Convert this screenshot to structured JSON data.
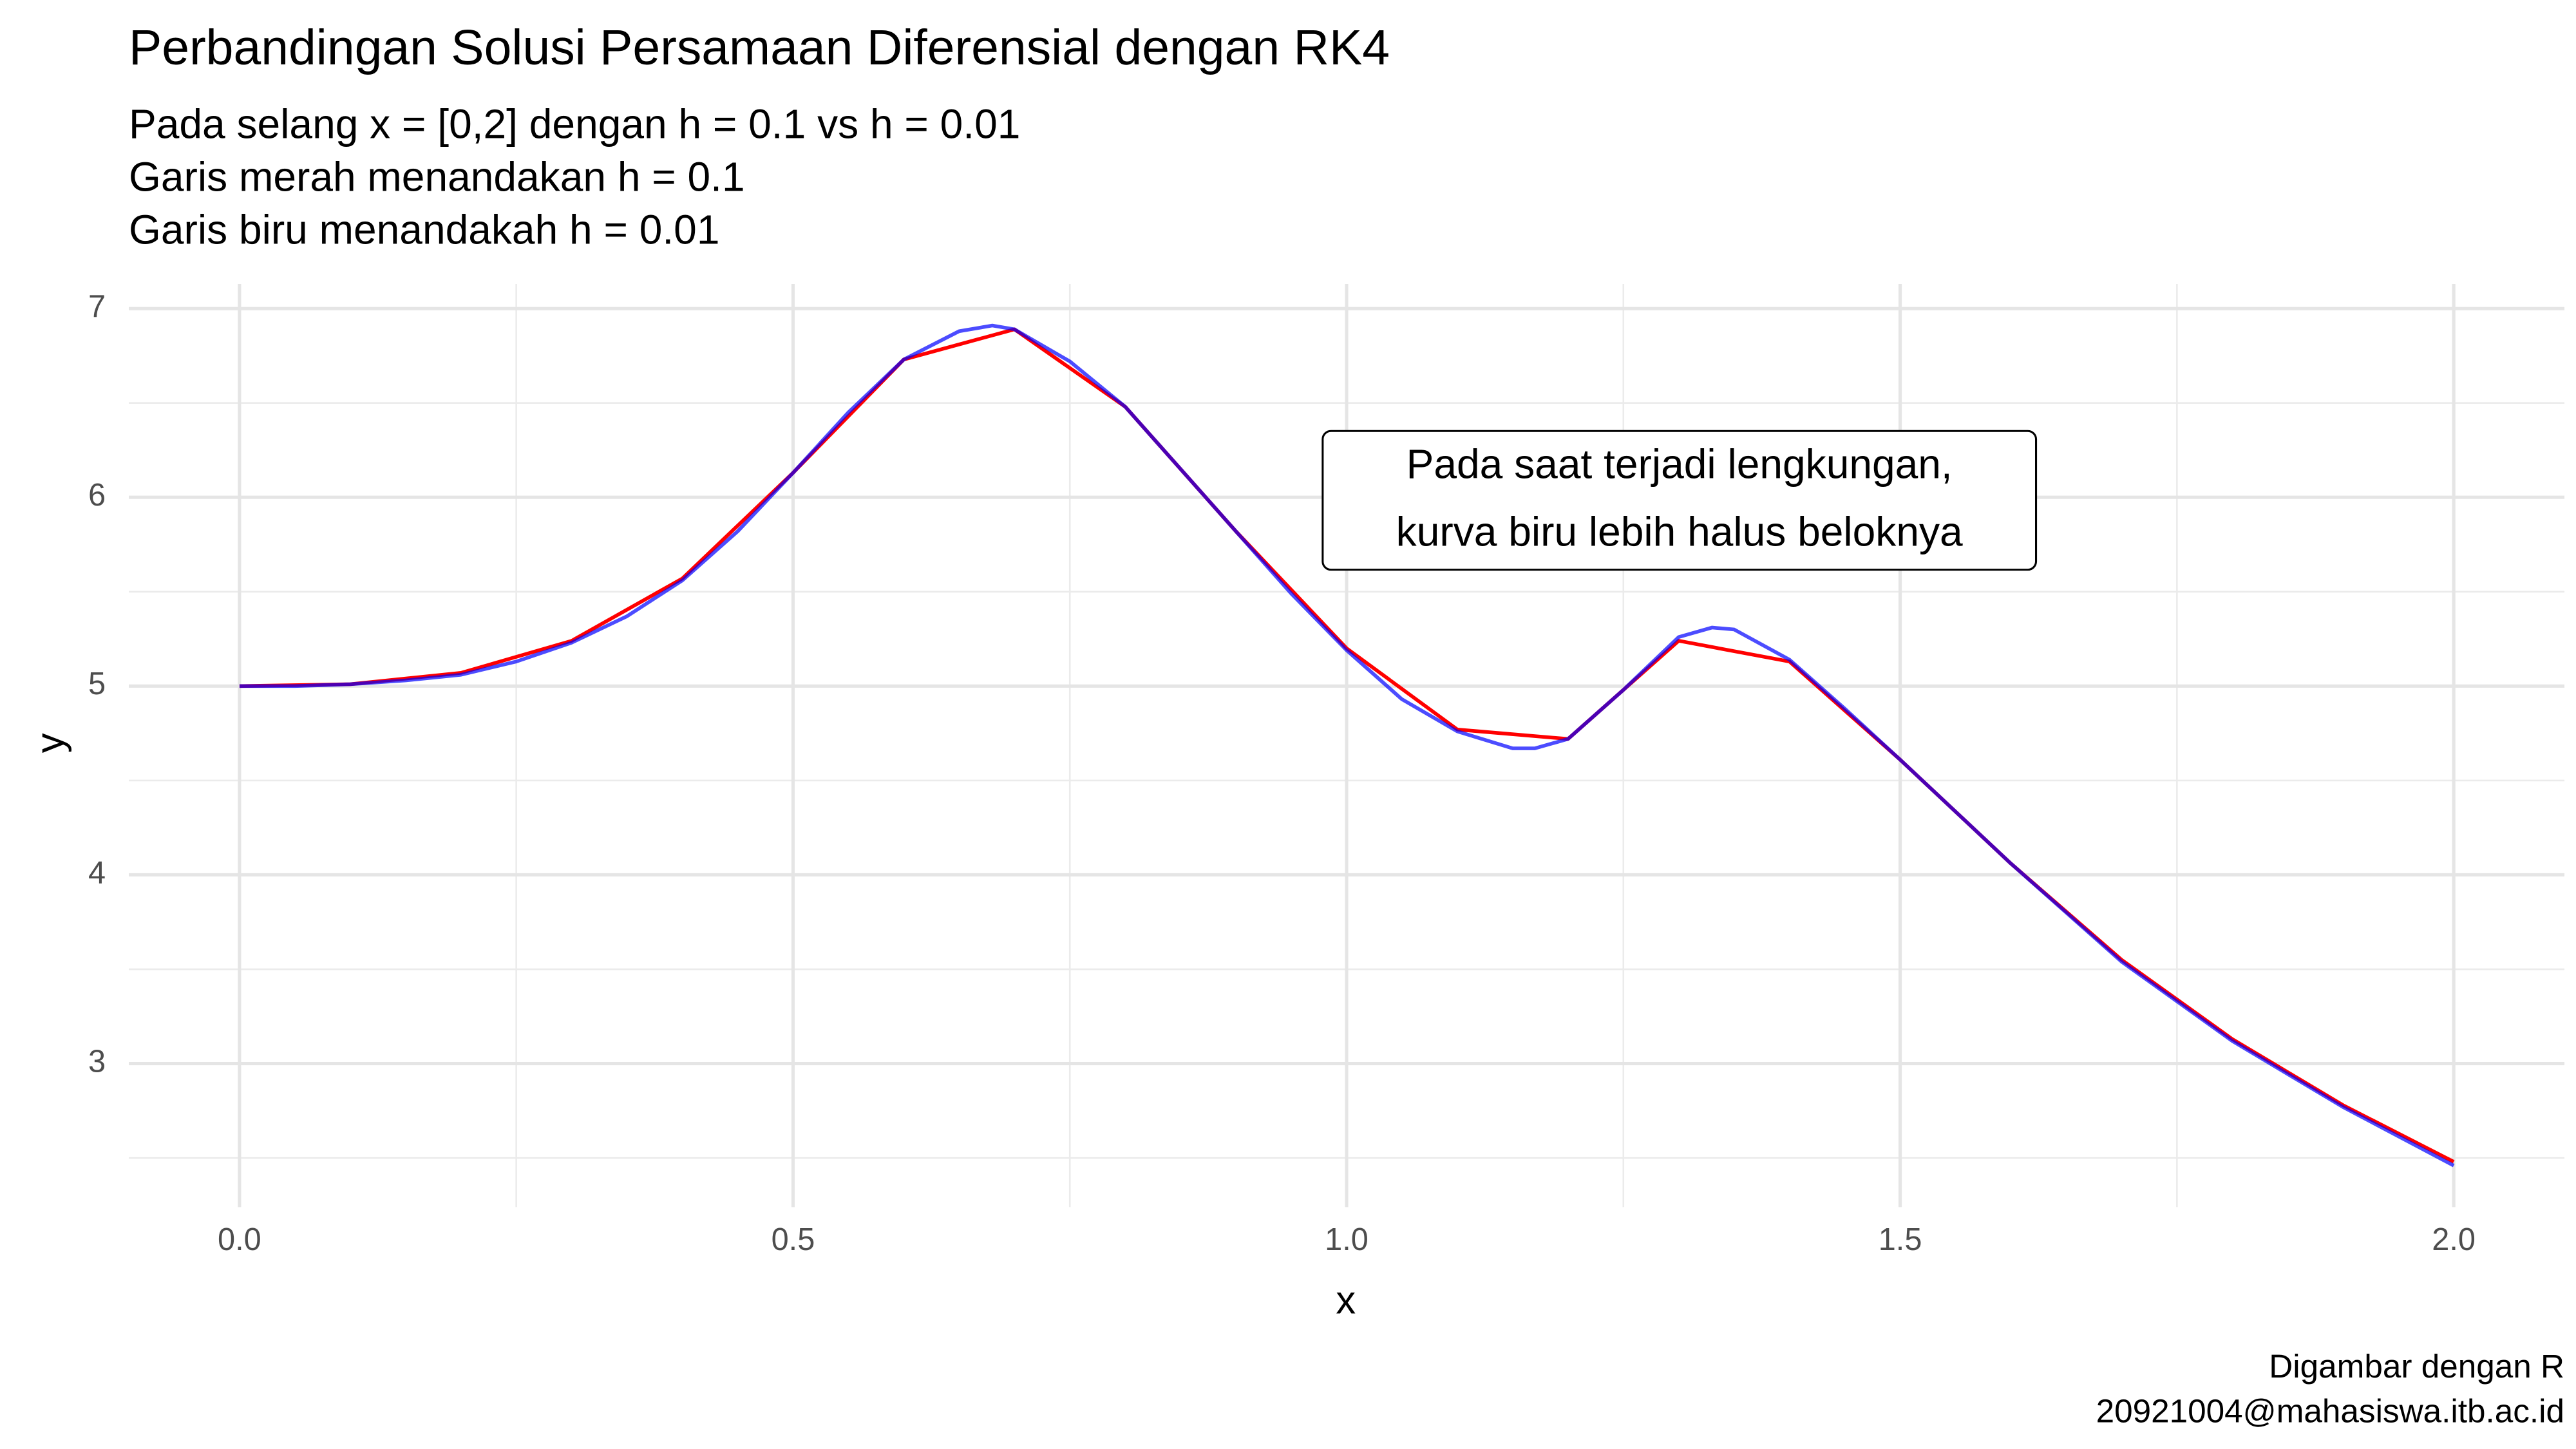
{
  "chart_data": {
    "type": "line",
    "title": "Perbandingan Solusi Persamaan Diferensial dengan RK4",
    "subtitle": [
      "Pada selang x = [0,2] dengan h = 0.1 vs h = 0.01",
      "Garis merah menandakan h = 0.1",
      "Garis biru menandakah h = 0.01"
    ],
    "x_label": "x",
    "y_label": "y",
    "annotation": [
      "Pada saat terjadi lengkungan,",
      "kurva biru lebih halus beloknya"
    ],
    "caption": [
      "Digambar dengan R",
      "20921004@mahasiswa.itb.ac.id"
    ],
    "xlim": [
      -0.1,
      2.1
    ],
    "ylim": [
      2.24,
      7.13
    ],
    "xticks": [
      {
        "value": 0,
        "label": "0.0"
      },
      0.5,
      {
        "value": 1,
        "label": "1.0"
      },
      1.5,
      {
        "value": 2,
        "label": "2.0"
      }
    ],
    "yticks": [
      3,
      4,
      5,
      6,
      7
    ],
    "xminor": [
      0.25,
      0.75,
      1.25,
      1.75
    ],
    "yminor": [
      2.5,
      3.5,
      4.5,
      5.5,
      6.5
    ],
    "grid": true,
    "series": [
      {
        "color": "#ff0000",
        "alpha": 1,
        "x": [
          0,
          0.1,
          0.2,
          0.3,
          0.4,
          0.5,
          0.6,
          0.7,
          0.8,
          0.9,
          1,
          1.1,
          1.2,
          1.3,
          1.4,
          1.5,
          1.6,
          1.7,
          1.8,
          1.9,
          2
        ],
        "values": [
          5.0,
          5.01,
          5.07,
          5.24,
          5.57,
          6.13,
          6.73,
          6.89,
          6.48,
          5.82,
          5.2,
          4.77,
          4.72,
          5.24,
          5.13,
          4.61,
          4.06,
          3.55,
          3.13,
          2.78,
          2.48
        ]
      },
      {
        "color": "#0000ff",
        "alpha": 0.7,
        "x": [
          0,
          0.05,
          0.1,
          0.15,
          0.2,
          0.25,
          0.3,
          0.35,
          0.4,
          0.45,
          0.5,
          0.55,
          0.6,
          0.65,
          0.68,
          0.7,
          0.75,
          0.8,
          0.85,
          0.9,
          0.95,
          1,
          1.05,
          1.1,
          1.15,
          1.17,
          1.2,
          1.25,
          1.3,
          1.33,
          1.35,
          1.4,
          1.45,
          1.5,
          1.6,
          1.7,
          1.8,
          1.9,
          2
        ],
        "values": [
          5.0,
          5.0,
          5.01,
          5.03,
          5.06,
          5.13,
          5.23,
          5.37,
          5.56,
          5.82,
          6.13,
          6.45,
          6.73,
          6.88,
          6.91,
          6.89,
          6.72,
          6.48,
          6.15,
          5.82,
          5.49,
          5.19,
          4.93,
          4.76,
          4.67,
          4.67,
          4.72,
          4.98,
          5.26,
          5.31,
          5.3,
          5.14,
          4.88,
          4.61,
          4.06,
          3.54,
          3.12,
          2.77,
          2.46
        ]
      }
    ]
  }
}
